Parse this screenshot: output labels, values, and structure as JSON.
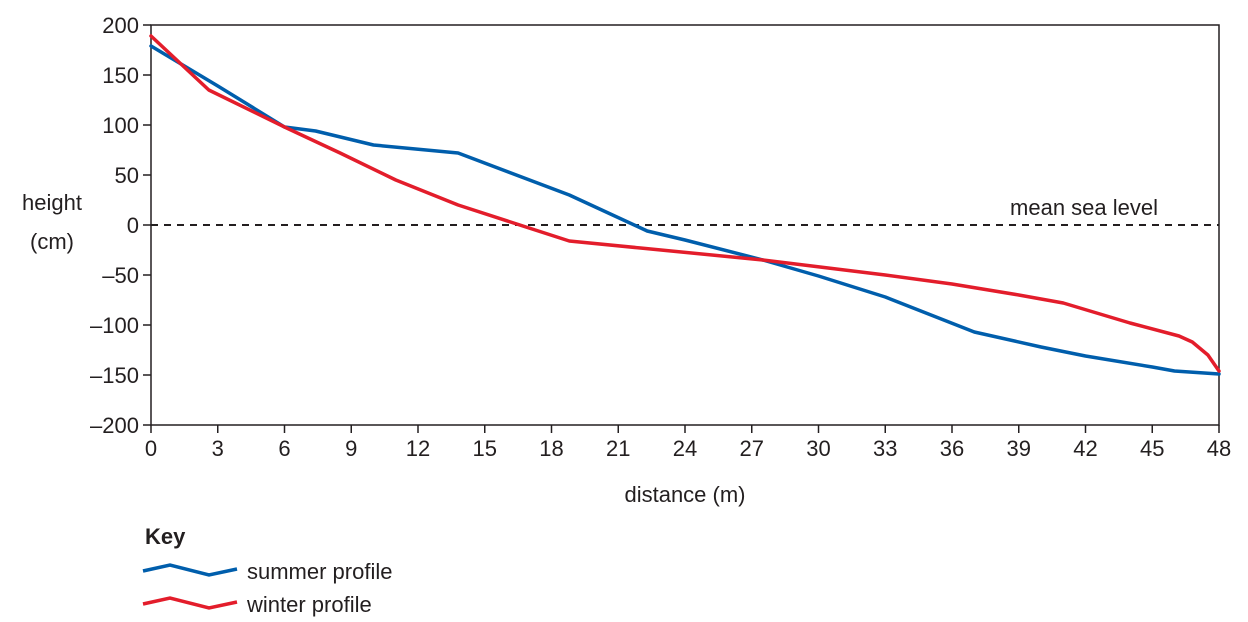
{
  "chart_data": {
    "type": "line",
    "title": "",
    "xlabel": "distance (m)",
    "ylabel": [
      "height",
      "(cm)"
    ],
    "xlim": [
      0,
      48
    ],
    "ylim": [
      -200,
      200
    ],
    "xticks": [
      0,
      3,
      6,
      9,
      12,
      15,
      18,
      21,
      24,
      27,
      30,
      33,
      36,
      39,
      42,
      45,
      48
    ],
    "yticks": [
      200,
      150,
      100,
      50,
      0,
      -50,
      -100,
      -150,
      -200
    ],
    "ytick_labels": [
      "200",
      "150",
      "100",
      "50",
      "0",
      "–50",
      "–100",
      "–150",
      "–200"
    ],
    "grid": false,
    "reference_line": {
      "y": 0,
      "style": "dashed",
      "label": "mean sea level"
    },
    "legend": {
      "title": "Key",
      "position": "bottom-left"
    },
    "series": [
      {
        "name": "summer profile",
        "color": "#005eac",
        "points": [
          [
            0,
            179
          ],
          [
            3,
            139
          ],
          [
            6,
            98
          ],
          [
            7.4,
            94
          ],
          [
            10,
            80
          ],
          [
            13.8,
            72
          ],
          [
            18.8,
            30
          ],
          [
            22.3,
            -6
          ],
          [
            24,
            -15
          ],
          [
            27.5,
            -35
          ],
          [
            30,
            -51
          ],
          [
            33,
            -72
          ],
          [
            37,
            -107
          ],
          [
            40,
            -122
          ],
          [
            42,
            -131
          ],
          [
            45,
            -142
          ],
          [
            46,
            -146
          ],
          [
            48,
            -149
          ]
        ]
      },
      {
        "name": "winter profile",
        "color": "#e31d2b",
        "points": [
          [
            0,
            189
          ],
          [
            2.6,
            135
          ],
          [
            6,
            98
          ],
          [
            8.5,
            72
          ],
          [
            11,
            45
          ],
          [
            13.8,
            20
          ],
          [
            18.8,
            -16
          ],
          [
            22,
            -23
          ],
          [
            27.5,
            -35
          ],
          [
            33,
            -50
          ],
          [
            36,
            -59
          ],
          [
            39,
            -70
          ],
          [
            41,
            -78
          ],
          [
            44,
            -98
          ],
          [
            46.2,
            -111
          ],
          [
            46.8,
            -117
          ],
          [
            47.5,
            -130
          ],
          [
            48,
            -146
          ]
        ]
      }
    ]
  }
}
